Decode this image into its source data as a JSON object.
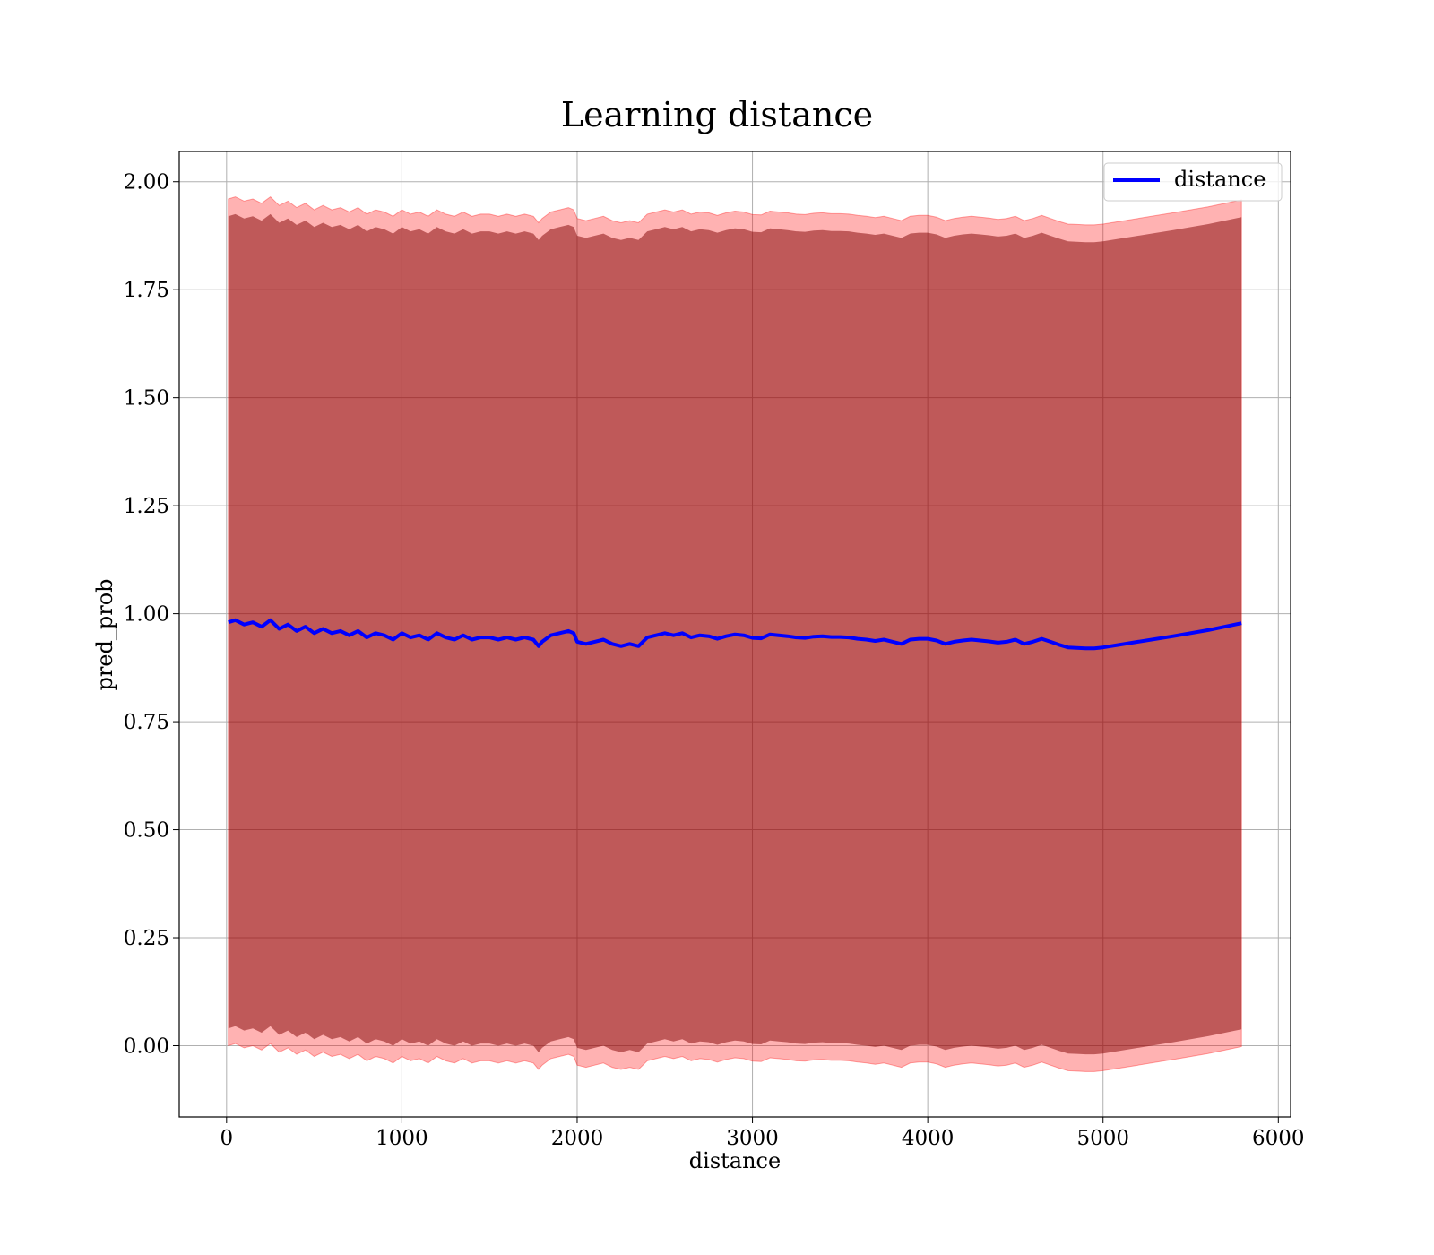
{
  "chart_data": {
    "type": "area",
    "title": "Learning distance",
    "xlabel": "distance",
    "ylabel": "pred_prob",
    "xlim": [
      -270,
      6070
    ],
    "ylim": [
      -0.165,
      2.07
    ],
    "xticks": [
      0,
      1000,
      2000,
      3000,
      4000,
      5000,
      6000
    ],
    "yticks": [
      0.0,
      0.25,
      0.5,
      0.75,
      1.0,
      1.25,
      1.5,
      1.75,
      2.0
    ],
    "xtick_labels": [
      "0",
      "1000",
      "2000",
      "3000",
      "4000",
      "5000",
      "6000"
    ],
    "ytick_labels": [
      "0.00",
      "0.25",
      "0.50",
      "0.75",
      "1.00",
      "1.25",
      "1.50",
      "1.75",
      "2.00"
    ],
    "grid": true,
    "legend": {
      "placement": "top-right",
      "entries": [
        "distance"
      ]
    },
    "colors": {
      "line": "#0000ff",
      "band": "#ff0000",
      "inner_band": "#800000"
    },
    "series": [
      {
        "name": "distance",
        "x": [
          10,
          50,
          100,
          150,
          200,
          250,
          300,
          350,
          400,
          450,
          500,
          550,
          600,
          650,
          700,
          750,
          800,
          850,
          900,
          950,
          1000,
          1050,
          1100,
          1150,
          1200,
          1250,
          1300,
          1350,
          1400,
          1450,
          1500,
          1550,
          1600,
          1650,
          1700,
          1750,
          1780,
          1800,
          1850,
          1900,
          1950,
          1980,
          2000,
          2050,
          2100,
          2150,
          2200,
          2250,
          2300,
          2350,
          2400,
          2450,
          2500,
          2550,
          2600,
          2650,
          2700,
          2750,
          2800,
          2850,
          2900,
          2950,
          3000,
          3050,
          3100,
          3150,
          3200,
          3250,
          3300,
          3350,
          3400,
          3450,
          3500,
          3550,
          3600,
          3650,
          3700,
          3750,
          3800,
          3850,
          3900,
          3950,
          4000,
          4050,
          4100,
          4150,
          4200,
          4250,
          4300,
          4350,
          4400,
          4450,
          4500,
          4550,
          4600,
          4650,
          4700,
          4750,
          4800,
          4850,
          4900,
          4950,
          5000,
          5200,
          5400,
          5600,
          5790
        ],
        "y": [
          0.98,
          0.985,
          0.975,
          0.98,
          0.97,
          0.985,
          0.965,
          0.975,
          0.96,
          0.97,
          0.955,
          0.965,
          0.955,
          0.96,
          0.95,
          0.96,
          0.945,
          0.955,
          0.95,
          0.94,
          0.955,
          0.945,
          0.95,
          0.94,
          0.955,
          0.945,
          0.94,
          0.95,
          0.94,
          0.945,
          0.945,
          0.94,
          0.945,
          0.94,
          0.945,
          0.94,
          0.925,
          0.935,
          0.95,
          0.955,
          0.96,
          0.955,
          0.935,
          0.93,
          0.935,
          0.94,
          0.93,
          0.925,
          0.93,
          0.925,
          0.945,
          0.95,
          0.955,
          0.95,
          0.955,
          0.945,
          0.95,
          0.948,
          0.942,
          0.948,
          0.952,
          0.95,
          0.944,
          0.943,
          0.952,
          0.95,
          0.948,
          0.945,
          0.944,
          0.947,
          0.948,
          0.946,
          0.946,
          0.945,
          0.942,
          0.94,
          0.937,
          0.94,
          0.935,
          0.93,
          0.94,
          0.942,
          0.942,
          0.938,
          0.93,
          0.935,
          0.938,
          0.94,
          0.938,
          0.936,
          0.933,
          0.935,
          0.94,
          0.93,
          0.935,
          0.942,
          0.935,
          0.928,
          0.922,
          0.921,
          0.92,
          0.92,
          0.922,
          0.935,
          0.948,
          0.962,
          0.978
        ],
        "band_outer_halfwidth": 0.98,
        "band_inner_halfwidth": 0.94
      }
    ]
  }
}
